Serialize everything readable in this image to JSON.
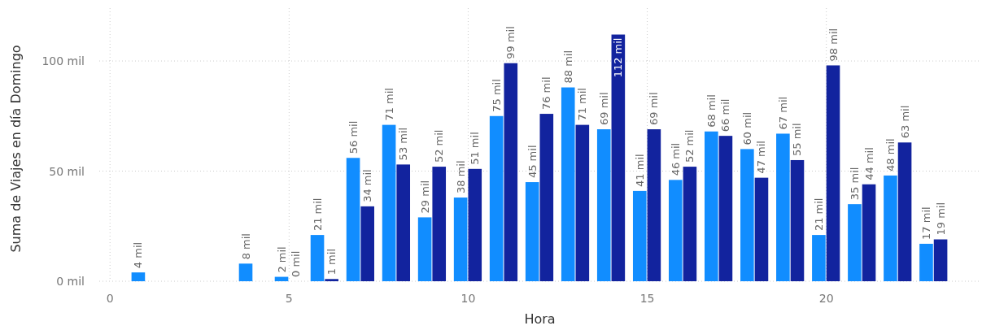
{
  "chart_data": {
    "type": "bar",
    "xlabel": "Hora",
    "ylabel": "Suma de Viajes en día Domingo",
    "x": [
      1,
      4,
      5,
      6,
      7,
      8,
      9,
      10,
      11,
      12,
      13,
      14,
      15,
      16,
      17,
      18,
      19,
      20,
      21,
      22,
      23
    ],
    "series": [
      {
        "color": "#118dff",
        "values": [
          4,
          8,
          2,
          21,
          56,
          71,
          29,
          38,
          75,
          45,
          88,
          69,
          41,
          46,
          68,
          60,
          67,
          21,
          35,
          48,
          17
        ],
        "value_labels": [
          "4 mil",
          "8 mil",
          "2 mil",
          "21 mil",
          "56 mil",
          "71 mil",
          "29 mil",
          "38 mil",
          "75 mil",
          "45 mil",
          "88 mil",
          "69 mil",
          "41 mil",
          "46 mil",
          "68 mil",
          "60 mil",
          "67 mil",
          "21 mil",
          "35 mil",
          "48 mil",
          "17 mil"
        ]
      },
      {
        "color": "#12239e",
        "values": [
          null,
          null,
          0,
          1,
          34,
          53,
          52,
          51,
          99,
          76,
          71,
          112,
          69,
          52,
          66,
          47,
          55,
          98,
          44,
          63,
          19
        ],
        "value_labels": [
          null,
          null,
          "0 mil",
          "1 mil",
          "34 mil",
          "53 mil",
          "52 mil",
          "51 mil",
          "99 mil",
          "76 mil",
          "71 mil",
          "112 mil",
          "69 mil",
          "52 mil",
          "66 mil",
          "47 mil",
          "55 mil",
          "98 mil",
          "44 mil",
          "63 mil",
          "19 mil"
        ]
      }
    ],
    "xlim": [
      -0.3,
      24.3
    ],
    "xticks": [
      0,
      5,
      10,
      15,
      20
    ],
    "ylim": [
      0,
      124
    ],
    "yticks": [
      {
        "value": 0,
        "label": "0 mil"
      },
      {
        "value": 50,
        "label": "50 mil"
      },
      {
        "value": 100,
        "label": "100 mil"
      }
    ],
    "grid": true
  }
}
